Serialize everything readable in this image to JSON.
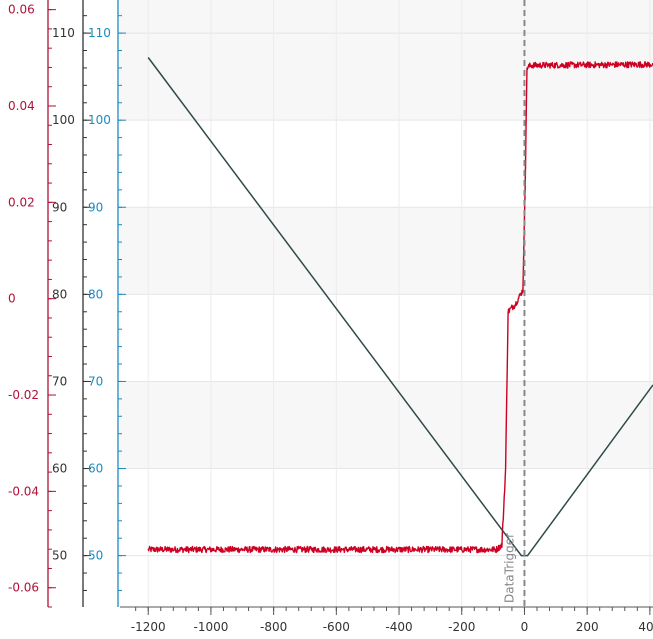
{
  "chart_data": {
    "type": "line",
    "title": "",
    "xlabel": "",
    "xlim": [
      -1290,
      410
    ],
    "x_ticks": [
      -1200,
      -1000,
      -800,
      -600,
      -400,
      -200,
      0,
      200,
      400
    ],
    "trigger": {
      "label": "DataTrigger",
      "x": 0,
      "color": "#888888"
    },
    "axes": [
      {
        "id": "left-red",
        "color": "#b0123a",
        "ylim": [
          -0.064,
          0.062
        ],
        "ticks": [
          -0.06,
          -0.04,
          -0.02,
          0,
          0.02,
          0.04,
          0.06
        ]
      },
      {
        "id": "left-dark",
        "color": "#333333",
        "ylim": [
          44.1,
          113.8
        ],
        "ticks": [
          50,
          60,
          70,
          80,
          90,
          100,
          110
        ]
      },
      {
        "id": "left-blue",
        "color": "#1a8cc0",
        "ylim": [
          44.1,
          113.8
        ],
        "ticks": [
          50,
          60,
          70,
          80,
          90,
          100,
          110
        ]
      }
    ],
    "series": [
      {
        "color": "#cc0022",
        "axis": "left-blue",
        "noise": 0.35,
        "x": [
          -1200,
          -90,
          -72,
          -60,
          -52,
          -40,
          -30,
          -5,
          2,
          8,
          20,
          410
        ],
        "y": [
          50.7,
          50.7,
          51.2,
          60,
          78,
          78.5,
          78.8,
          80.5,
          92,
          106,
          106.3,
          106.4
        ]
      },
      {
        "color": "#2f4a4a",
        "axis": "left-blue",
        "noise": 0,
        "x": [
          -1200,
          -10,
          10,
          410
        ],
        "y": [
          107.2,
          50.0,
          50.0,
          69.6
        ]
      }
    ],
    "grid": true
  }
}
